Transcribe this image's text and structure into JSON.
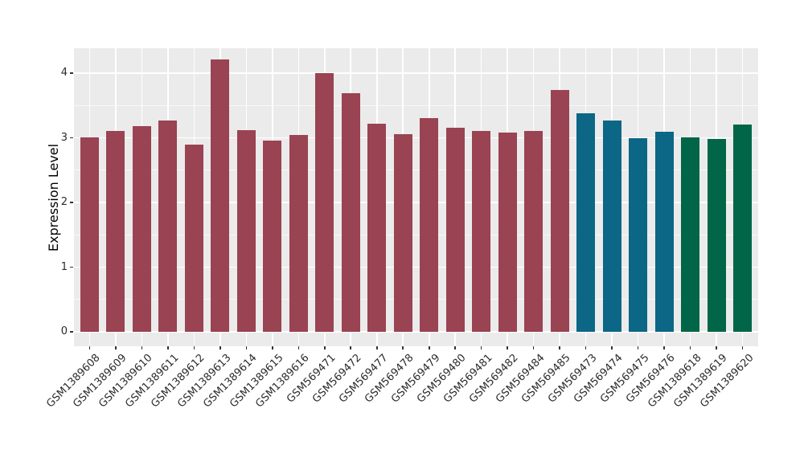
{
  "chart_data": {
    "type": "bar",
    "ylabel": "Expression Level",
    "xlabel": "",
    "y_ticks": [
      0,
      1,
      2,
      3,
      4
    ],
    "ylim": [
      -0.22,
      4.43
    ],
    "grid": "white major and minor horizontal gridlines plus vertical gridlines at each category, on gray panel",
    "legend": "none",
    "x_tick_rotation_deg": 45,
    "panel_bg": "#ebebeb",
    "grid_color": "#ffffff",
    "tick_color": "#333333",
    "categories": [
      "GSM1389608",
      "GSM1389609",
      "GSM1389610",
      "GSM1389611",
      "GSM1389612",
      "GSM1389613",
      "GSM1389614",
      "GSM1389615",
      "GSM1389616",
      "GSM569471",
      "GSM569472",
      "GSM569477",
      "GSM569478",
      "GSM569479",
      "GSM569480",
      "GSM569481",
      "GSM569482",
      "GSM569484",
      "GSM569485",
      "GSM569473",
      "GSM569474",
      "GSM569475",
      "GSM569476",
      "GSM1389618",
      "GSM1389619",
      "GSM1389620"
    ],
    "values": [
      3.01,
      3.11,
      3.18,
      3.27,
      2.89,
      4.21,
      3.12,
      2.96,
      3.04,
      4.0,
      3.69,
      3.22,
      3.06,
      3.3,
      3.15,
      3.1,
      3.08,
      3.11,
      3.74,
      3.38,
      3.27,
      2.99,
      3.09,
      3.01,
      2.98,
      3.2
    ],
    "bar_groups": [
      "maroon",
      "maroon",
      "maroon",
      "maroon",
      "maroon",
      "maroon",
      "maroon",
      "maroon",
      "maroon",
      "maroon",
      "maroon",
      "maroon",
      "maroon",
      "maroon",
      "maroon",
      "maroon",
      "maroon",
      "maroon",
      "maroon",
      "teal",
      "teal",
      "teal",
      "teal",
      "green",
      "green",
      "green"
    ],
    "group_colors": {
      "maroon": "#9a4352",
      "teal": "#0c6685",
      "green": "#006647"
    }
  }
}
